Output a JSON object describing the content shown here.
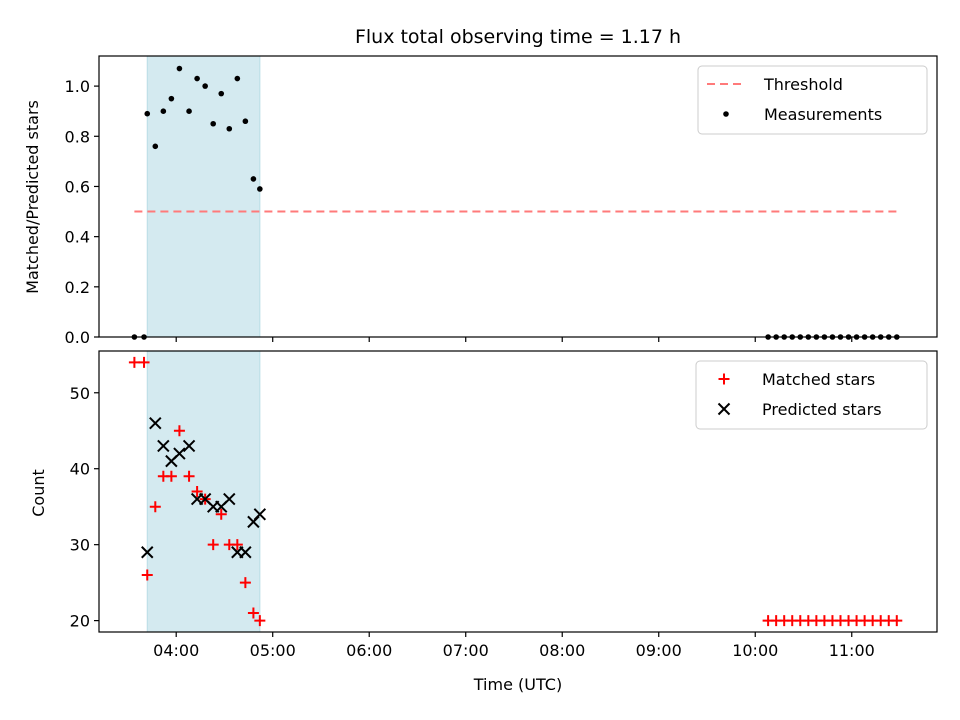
{
  "chart_data": [
    {
      "type": "scatter",
      "title": "Flux total observing time = 1.17 h",
      "xlabel": "",
      "ylabel": "Matched/Predicted stars",
      "ylim": [
        0.0,
        1.12
      ],
      "xlim": [
        "03:12",
        "11:53"
      ],
      "yticks": [
        "0.0",
        "0.2",
        "0.4",
        "0.6",
        "0.8",
        "1.0"
      ],
      "shaded_region": {
        "start": "03:42",
        "end": "04:52",
        "color": "#d4eaf0"
      },
      "legend_position": "top-right",
      "threshold": {
        "name": "Threshold",
        "value": 0.5,
        "x_start": "03:34",
        "x_end": "11:28",
        "color": "#ff7a7a"
      },
      "series": [
        {
          "name": "Measurements",
          "color": "#000000",
          "x": [
            "03:34",
            "03:40",
            "03:42",
            "03:47",
            "03:52",
            "03:57",
            "04:02",
            "04:08",
            "04:13",
            "04:18",
            "04:23",
            "04:28",
            "04:33",
            "04:38",
            "04:43",
            "04:48",
            "04:52",
            "10:08",
            "10:13",
            "10:18",
            "10:23",
            "10:28",
            "10:33",
            "10:38",
            "10:43",
            "10:48",
            "10:53",
            "10:58",
            "11:03",
            "11:08",
            "11:13",
            "11:18",
            "11:23",
            "11:28"
          ],
          "y": [
            0.0,
            0.0,
            0.89,
            0.76,
            0.9,
            0.95,
            1.07,
            0.9,
            1.03,
            1.0,
            0.85,
            0.97,
            0.83,
            1.03,
            0.86,
            0.63,
            0.59,
            0.0,
            0.0,
            0.0,
            0.0,
            0.0,
            0.0,
            0.0,
            0.0,
            0.0,
            0.0,
            0.0,
            0.0,
            0.0,
            0.0,
            0.0,
            0.0,
            0.0
          ]
        }
      ]
    },
    {
      "type": "scatter",
      "title": "",
      "xlabel": "Time (UTC)",
      "ylabel": "Count",
      "ylim": [
        18.5,
        55.5
      ],
      "xlim": [
        "03:12",
        "11:53"
      ],
      "yticks": [
        "20",
        "30",
        "40",
        "50"
      ],
      "xticks": [
        "04:00",
        "05:00",
        "06:00",
        "07:00",
        "08:00",
        "09:00",
        "10:00",
        "11:00"
      ],
      "shaded_region": {
        "start": "03:42",
        "end": "04:52",
        "color": "#d4eaf0"
      },
      "legend_position": "top-right",
      "series": [
        {
          "name": "Matched stars",
          "marker": "plus",
          "color": "#ff0000",
          "x": [
            "03:34",
            "03:40",
            "03:42",
            "03:47",
            "03:52",
            "03:57",
            "04:02",
            "04:08",
            "04:13",
            "04:18",
            "04:23",
            "04:28",
            "04:33",
            "04:38",
            "04:43",
            "04:48",
            "04:52",
            "10:08",
            "10:13",
            "10:18",
            "10:23",
            "10:28",
            "10:33",
            "10:38",
            "10:43",
            "10:48",
            "10:53",
            "10:58",
            "11:03",
            "11:08",
            "11:13",
            "11:18",
            "11:23",
            "11:28"
          ],
          "y": [
            54,
            54,
            26,
            35,
            39,
            39,
            45,
            39,
            37,
            36,
            30,
            34,
            30,
            30,
            25,
            21,
            20,
            20,
            20,
            20,
            20,
            20,
            20,
            20,
            20,
            20,
            20,
            20,
            20,
            20,
            20,
            20,
            20,
            20
          ]
        },
        {
          "name": "Predicted stars",
          "marker": "x",
          "color": "#000000",
          "x": [
            "03:42",
            "03:47",
            "03:52",
            "03:57",
            "04:02",
            "04:08",
            "04:13",
            "04:18",
            "04:23",
            "04:28",
            "04:33",
            "04:38",
            "04:43",
            "04:48",
            "04:52"
          ],
          "y": [
            29,
            46,
            43,
            41,
            42,
            43,
            36,
            36,
            35,
            35,
            36,
            29,
            29,
            33,
            34
          ]
        }
      ]
    }
  ]
}
